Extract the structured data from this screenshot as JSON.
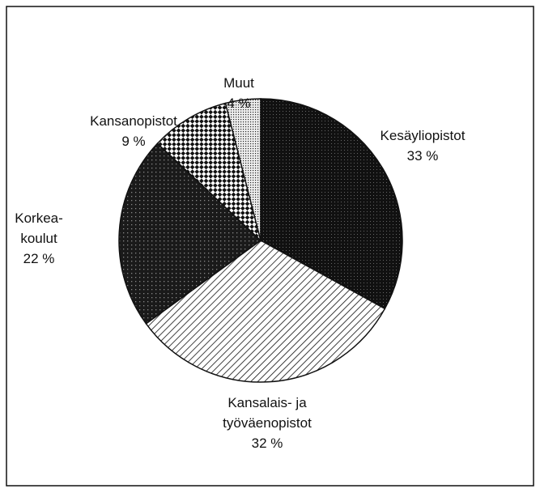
{
  "chart_data": {
    "type": "pie",
    "categories": [
      "Kesäyliopistot",
      "Kansalais- ja\ntyöväenopistot",
      "Korkea-\nkoulut",
      "Kansanopistot",
      "Muut"
    ],
    "values": [
      33,
      32,
      22,
      9,
      4
    ],
    "value_labels": [
      "33 %",
      "32 %",
      "22 %",
      "9 %",
      "4 %"
    ],
    "colors": [
      "#111111",
      "#ffffff",
      "#222222",
      "#ffffff",
      "#dddddd"
    ]
  }
}
